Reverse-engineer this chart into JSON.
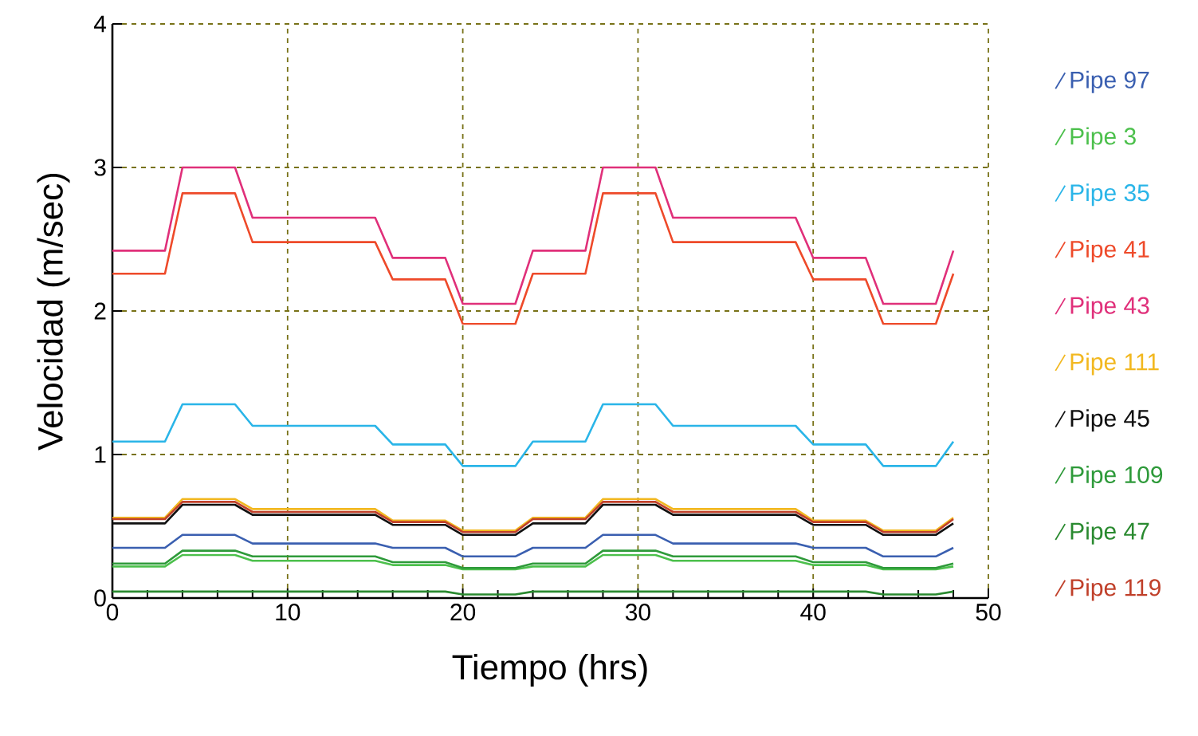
{
  "chart_data": {
    "type": "line",
    "xlabel": "Tiempo (hrs)",
    "ylabel": "Velocidad (m/sec)",
    "x": [
      0,
      3,
      4,
      7,
      8,
      15,
      16,
      19,
      20,
      23,
      24,
      27,
      28,
      31,
      32,
      39,
      40,
      43,
      44,
      47,
      48
    ],
    "xlim": [
      0,
      50
    ],
    "ylim": [
      0,
      4
    ],
    "xticks": [
      0,
      10,
      20,
      30,
      40,
      50
    ],
    "yticks": [
      0,
      1,
      2,
      3,
      4
    ],
    "grid": true,
    "legend": "right",
    "marker": "none",
    "line_style": "solid",
    "series": [
      {
        "name": "Pipe 97",
        "color": "#3a5fb0",
        "values": [
          0.35,
          0.35,
          0.44,
          0.44,
          0.38,
          0.38,
          0.35,
          0.35,
          0.29,
          0.29,
          0.35,
          0.35,
          0.44,
          0.44,
          0.38,
          0.38,
          0.35,
          0.35,
          0.29,
          0.29,
          0.35
        ]
      },
      {
        "name": "Pipe 3",
        "color": "#4cc04c",
        "values": [
          0.22,
          0.22,
          0.3,
          0.3,
          0.26,
          0.26,
          0.23,
          0.23,
          0.2,
          0.2,
          0.22,
          0.22,
          0.3,
          0.3,
          0.26,
          0.26,
          0.23,
          0.23,
          0.2,
          0.2,
          0.22
        ]
      },
      {
        "name": "Pipe 35",
        "color": "#2ab5e8",
        "values": [
          1.09,
          1.09,
          1.35,
          1.35,
          1.2,
          1.2,
          1.07,
          1.07,
          0.92,
          0.92,
          1.09,
          1.09,
          1.35,
          1.35,
          1.2,
          1.2,
          1.07,
          1.07,
          0.92,
          0.92,
          1.09
        ]
      },
      {
        "name": "Pipe 41",
        "color": "#ee4a2a",
        "values": [
          2.26,
          2.26,
          2.82,
          2.82,
          2.48,
          2.48,
          2.22,
          2.22,
          1.91,
          1.91,
          2.26,
          2.26,
          2.82,
          2.82,
          2.48,
          2.48,
          2.22,
          2.22,
          1.91,
          1.91,
          2.26
        ]
      },
      {
        "name": "Pipe 43",
        "color": "#e0307a",
        "values": [
          2.42,
          2.42,
          3.0,
          3.0,
          2.65,
          2.65,
          2.37,
          2.37,
          2.05,
          2.05,
          2.42,
          2.42,
          3.0,
          3.0,
          2.65,
          2.65,
          2.37,
          2.37,
          2.05,
          2.05,
          2.42
        ]
      },
      {
        "name": "Pipe 111",
        "color": "#f2b820",
        "values": [
          0.56,
          0.56,
          0.69,
          0.69,
          0.62,
          0.62,
          0.54,
          0.54,
          0.47,
          0.47,
          0.56,
          0.56,
          0.69,
          0.69,
          0.62,
          0.62,
          0.54,
          0.54,
          0.47,
          0.47,
          0.56
        ]
      },
      {
        "name": "Pipe 45",
        "color": "#101010",
        "values": [
          0.52,
          0.52,
          0.65,
          0.65,
          0.58,
          0.58,
          0.51,
          0.51,
          0.44,
          0.44,
          0.52,
          0.52,
          0.65,
          0.65,
          0.58,
          0.58,
          0.51,
          0.51,
          0.44,
          0.44,
          0.52
        ]
      },
      {
        "name": "Pipe 109",
        "color": "#2e9a3a",
        "values": [
          0.24,
          0.24,
          0.33,
          0.33,
          0.29,
          0.29,
          0.25,
          0.25,
          0.21,
          0.21,
          0.24,
          0.24,
          0.33,
          0.33,
          0.29,
          0.29,
          0.25,
          0.25,
          0.21,
          0.21,
          0.24
        ]
      },
      {
        "name": "Pipe 47",
        "color": "#2a8a30",
        "values": [
          0.045,
          0.045,
          0.045,
          0.045,
          0.045,
          0.045,
          0.045,
          0.045,
          0.025,
          0.025,
          0.045,
          0.045,
          0.045,
          0.045,
          0.045,
          0.045,
          0.045,
          0.045,
          0.025,
          0.025,
          0.045
        ]
      },
      {
        "name": "Pipe 119",
        "color": "#c0402a",
        "values": [
          0.55,
          0.55,
          0.67,
          0.67,
          0.6,
          0.6,
          0.53,
          0.53,
          0.46,
          0.46,
          0.55,
          0.55,
          0.67,
          0.67,
          0.6,
          0.6,
          0.53,
          0.53,
          0.46,
          0.46,
          0.55
        ]
      }
    ]
  }
}
